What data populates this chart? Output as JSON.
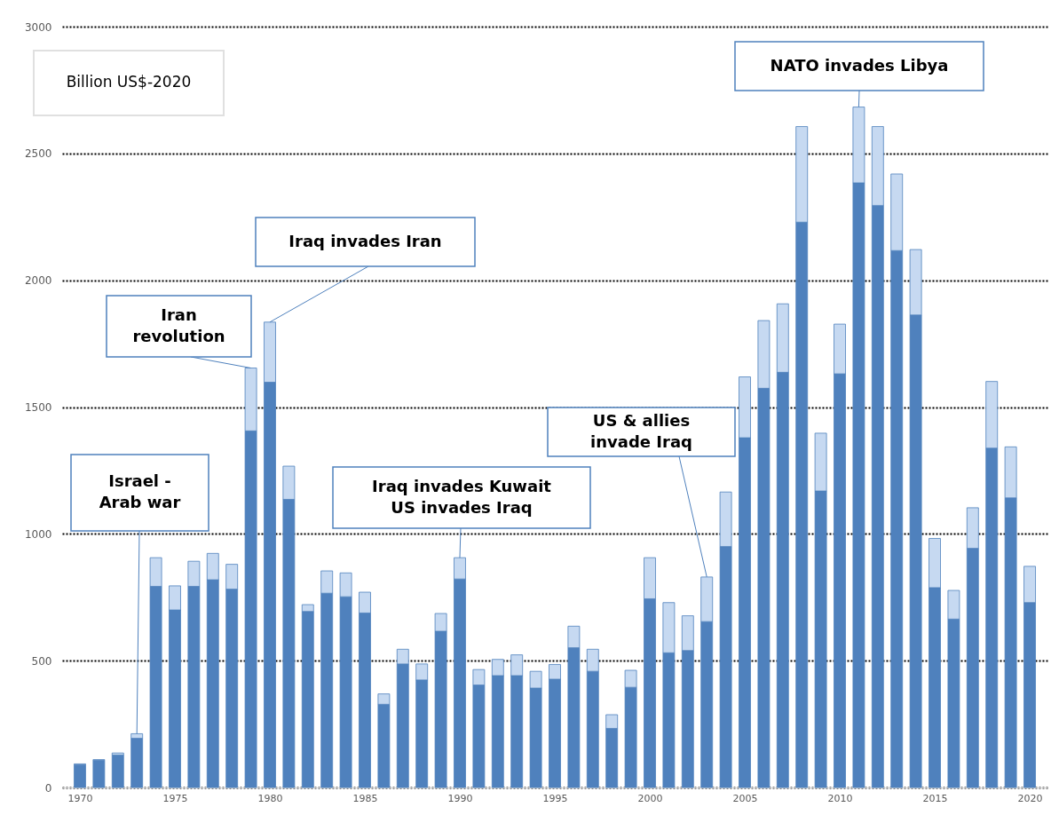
{
  "chart_data": {
    "type": "bar",
    "stacked": true,
    "ylabel": "Billion US$-2020",
    "x": [
      1970,
      1971,
      1972,
      1973,
      1974,
      1975,
      1976,
      1977,
      1978,
      1979,
      1980,
      1981,
      1982,
      1983,
      1984,
      1985,
      1986,
      1987,
      1988,
      1989,
      1990,
      1991,
      1992,
      1993,
      1994,
      1995,
      1996,
      1997,
      1998,
      1999,
      2000,
      2001,
      2002,
      2003,
      2004,
      2005,
      2006,
      2007,
      2008,
      2009,
      2010,
      2011,
      2012,
      2013,
      2014,
      2015,
      2016,
      2017,
      2018,
      2019,
      2020
    ],
    "series": [
      {
        "color": "#4f81bd",
        "values": [
          90,
          107,
          128,
          194,
          793,
          700,
          793,
          819,
          782,
          1406,
          1598,
          1136,
          694,
          766,
          752,
          688,
          328,
          487,
          424,
          616,
          822,
          404,
          441,
          441,
          392,
          427,
          551,
          458,
          233,
          395,
          744,
          531,
          540,
          654,
          950,
          1379,
          1574,
          1637,
          2229,
          1169,
          1631,
          2384,
          2295,
          2117,
          1863,
          788,
          664,
          943,
          1338,
          1142,
          729
        ]
      },
      {
        "color": "#c6d9f1",
        "values": [
          3,
          3,
          8,
          18,
          113,
          95,
          99,
          104,
          98,
          248,
          237,
          131,
          27,
          88,
          94,
          82,
          41,
          58,
          63,
          70,
          84,
          61,
          64,
          82,
          66,
          58,
          85,
          87,
          54,
          67,
          162,
          198,
          137,
          176,
          215,
          240,
          267,
          270,
          377,
          228,
          196,
          299,
          311,
          302,
          258,
          194,
          113,
          160,
          263,
          201,
          143
        ]
      }
    ],
    "xlim": [
      1969.3,
      2020.7
    ],
    "xticks": [
      1970,
      1975,
      1980,
      1985,
      1990,
      1995,
      2000,
      2005,
      2010,
      2015,
      2020
    ],
    "ylim": [
      0,
      3000
    ],
    "yticks": [
      0,
      500,
      1000,
      1500,
      2000,
      2500,
      3000
    ],
    "grid": "y",
    "annotations": [
      {
        "text": "Israel -\nArab war",
        "x": 1973,
        "y": 212
      },
      {
        "text": "Iran\nrevolution",
        "x": 1979,
        "y": 1654
      },
      {
        "text": "Iraq invades Iran",
        "x": 1980,
        "y": 1835
      },
      {
        "text": "Iraq invades Kuwait\nUS invades Iraq",
        "x": 1990,
        "y": 906
      },
      {
        "text": "US & allies\ninvade Iraq",
        "x": 2003,
        "y": 830
      },
      {
        "text": "NATO invades Libya",
        "x": 2011,
        "y": 2683
      }
    ]
  }
}
